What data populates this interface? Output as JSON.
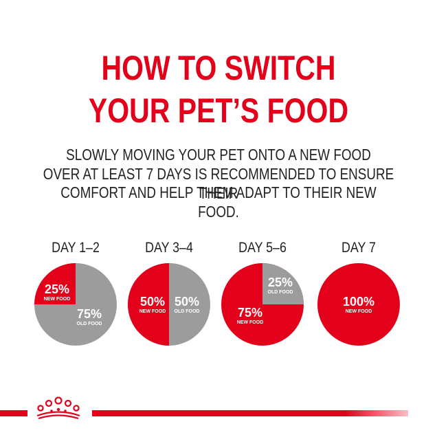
{
  "title": {
    "line1": "HOW TO SWITCH",
    "line2": "YOUR PET’S FOOD"
  },
  "subtitle": {
    "line1": "SLOWLY MOVING YOUR PET ONTO A NEW FOOD",
    "line2": "OVER AT LEAST 7 DAYS IS RECOMMENDED TO ENSURE THEIR",
    "line3": "COMFORT AND HELP THEM ADAPT TO THEIR NEW FOOD."
  },
  "colors": {
    "brand_red": "#e2001a",
    "old_food_gray": "#9c9c9c",
    "text_dark": "#222222"
  },
  "days": [
    {
      "label": "DAY 1–2",
      "new_pct": "25%",
      "new_text": "NEW FOOD",
      "old_pct": "75%",
      "old_text": "OLD FOOD",
      "new_fraction": 0.25
    },
    {
      "label": "DAY 3–4",
      "new_pct": "50%",
      "new_text": "NEW FOOD",
      "old_pct": "50%",
      "old_text": "OLD FOOD",
      "new_fraction": 0.5
    },
    {
      "label": "DAY 5–6",
      "new_pct": "75%",
      "new_text": "NEW FOOD",
      "old_pct": "25%",
      "old_text": "OLD FOOD",
      "new_fraction": 0.75
    },
    {
      "label": "DAY 7",
      "new_pct": "100%",
      "new_text": "NEW FOOD",
      "new_fraction": 1.0
    }
  ],
  "logo": {
    "icon": "royal-canin-crown-icon"
  }
}
